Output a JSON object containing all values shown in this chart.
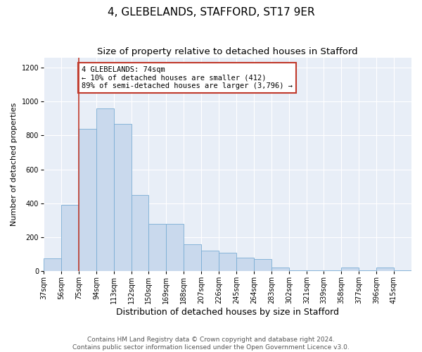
{
  "title1": "4, GLEBELANDS, STAFFORD, ST17 9ER",
  "title2": "Size of property relative to detached houses in Stafford",
  "xlabel": "Distribution of detached houses by size in Stafford",
  "ylabel": "Number of detached properties",
  "footer1": "Contains HM Land Registry data © Crown copyright and database right 2024.",
  "footer2": "Contains public sector information licensed under the Open Government Licence v3.0.",
  "annotation_line1": "4 GLEBELANDS: 74sqm",
  "annotation_line2": "← 10% of detached houses are smaller (412)",
  "annotation_line3": "89% of semi-detached houses are larger (3,796) →",
  "bar_color": "#c9d9ed",
  "bar_edge_color": "#7aadd4",
  "vline_color": "#c0392b",
  "vline_x": 75,
  "annotation_box_color": "#ffffff",
  "annotation_box_edge": "#c0392b",
  "categories": [
    "37sqm",
    "56sqm",
    "75sqm",
    "94sqm",
    "113sqm",
    "132sqm",
    "150sqm",
    "169sqm",
    "188sqm",
    "207sqm",
    "226sqm",
    "245sqm",
    "264sqm",
    "283sqm",
    "302sqm",
    "321sqm",
    "339sqm",
    "358sqm",
    "377sqm",
    "396sqm",
    "415sqm"
  ],
  "bin_edges": [
    37,
    56,
    75,
    94,
    113,
    132,
    150,
    169,
    188,
    207,
    226,
    245,
    264,
    283,
    302,
    321,
    339,
    358,
    377,
    396,
    415,
    434
  ],
  "values": [
    75,
    390,
    840,
    960,
    870,
    450,
    280,
    280,
    160,
    120,
    110,
    80,
    70,
    20,
    5,
    5,
    5,
    20,
    5,
    20,
    5
  ],
  "ylim": [
    0,
    1260
  ],
  "yticks": [
    0,
    200,
    400,
    600,
    800,
    1000,
    1200
  ],
  "fig_bg": "#ffffff",
  "axes_bg": "#e8eef7",
  "grid_color": "#ffffff",
  "title1_fontsize": 11,
  "title2_fontsize": 9.5,
  "xlabel_fontsize": 9,
  "ylabel_fontsize": 8,
  "tick_fontsize": 7,
  "annotation_fontsize": 7.5,
  "footer_fontsize": 6.5
}
